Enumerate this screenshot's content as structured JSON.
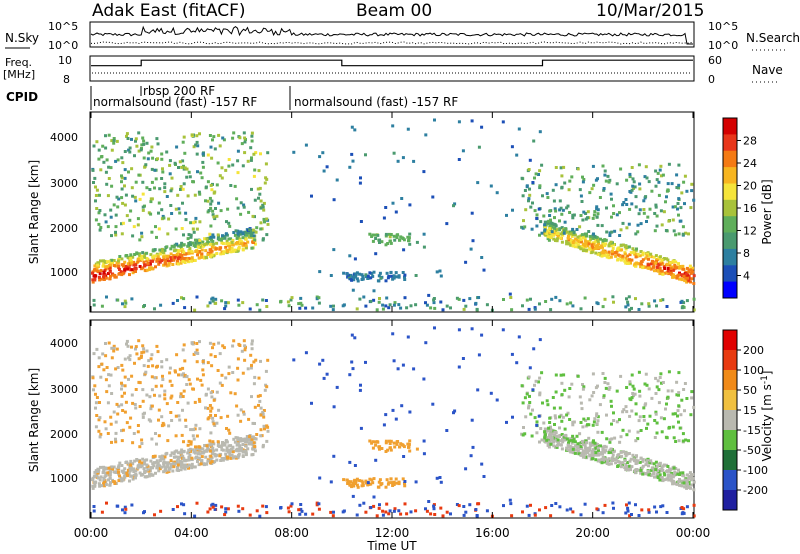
{
  "header": {
    "station": "Adak East (fitACF)",
    "beam": "Beam 00",
    "date": "10/Mar/2015"
  },
  "chart_data": [
    {
      "type": "line",
      "id": "nsky-nsearch",
      "left_label": "N.Sky",
      "right_label": "N.Search",
      "y_ticks_left": [
        "10^5",
        "10^0"
      ],
      "y_ticks_right": [
        "10^5",
        "10^0"
      ],
      "xlim": [
        0,
        24
      ]
    },
    {
      "type": "line",
      "id": "freq-nave",
      "left_label_lines": [
        "Freq.",
        "[MHz]"
      ],
      "right_label": "Nave",
      "y_ticks_left": [
        "10",
        "8"
      ],
      "y_ticks_right": [
        "60",
        "0"
      ],
      "freq_steps": [
        [
          0,
          9.3
        ],
        [
          2,
          9.8
        ],
        [
          10,
          9.3
        ],
        [
          18,
          9.8
        ],
        [
          24,
          9.8
        ]
      ],
      "xlim": [
        0,
        24
      ]
    },
    {
      "type": "table",
      "id": "cpid",
      "label": "CPID",
      "segments": [
        {
          "start": 0,
          "end": 8,
          "text": "normalsound (fast) -157 RF"
        },
        {
          "start": 2,
          "end": 8,
          "text": "rbsp 200 RF"
        },
        {
          "start": 8,
          "end": 24,
          "text": "normalsound (fast) -157 RF"
        }
      ]
    },
    {
      "type": "heatmap",
      "id": "power",
      "ylabel": "Slant Range [km]",
      "yticks": [
        1000,
        2000,
        3000,
        4000
      ],
      "ylim": [
        200,
        4600
      ],
      "xlim": [
        0,
        24
      ],
      "colorbar": {
        "label": "Power [dB]",
        "ticks": [
          "28",
          "24",
          "20",
          "16",
          "12",
          "8",
          "4"
        ],
        "range": [
          0,
          32
        ],
        "colors": [
          "#0000ff",
          "#1c4fb7",
          "#2d7fa0",
          "#4a9a6f",
          "#5fae5a",
          "#a8c23a",
          "#f5e43a",
          "#f7b520",
          "#f47a14",
          "#e8361a",
          "#d40000"
        ]
      }
    },
    {
      "type": "heatmap",
      "id": "velocity",
      "ylabel": "Slant Range [km]",
      "yticks": [
        1000,
        2000,
        3000,
        4000
      ],
      "ylim": [
        200,
        4600
      ],
      "xlim": [
        0,
        24
      ],
      "colorbar": {
        "label": "Velocity [m s^-1]",
        "ticks": [
          "200",
          "100",
          "50",
          "15",
          "-15",
          "-50",
          "-100",
          "-200"
        ],
        "colors": [
          "#2020a0",
          "#2b54c8",
          "#207038",
          "#5fbf3f",
          "#b9b9b0",
          "#f0c040",
          "#f08a18",
          "#e83a10",
          "#e00000"
        ]
      }
    }
  ],
  "x_axis": {
    "ticks": [
      "00:00",
      "04:00",
      "08:00",
      "12:00",
      "16:00",
      "20:00",
      "00:00"
    ],
    "label": "Time UT"
  }
}
